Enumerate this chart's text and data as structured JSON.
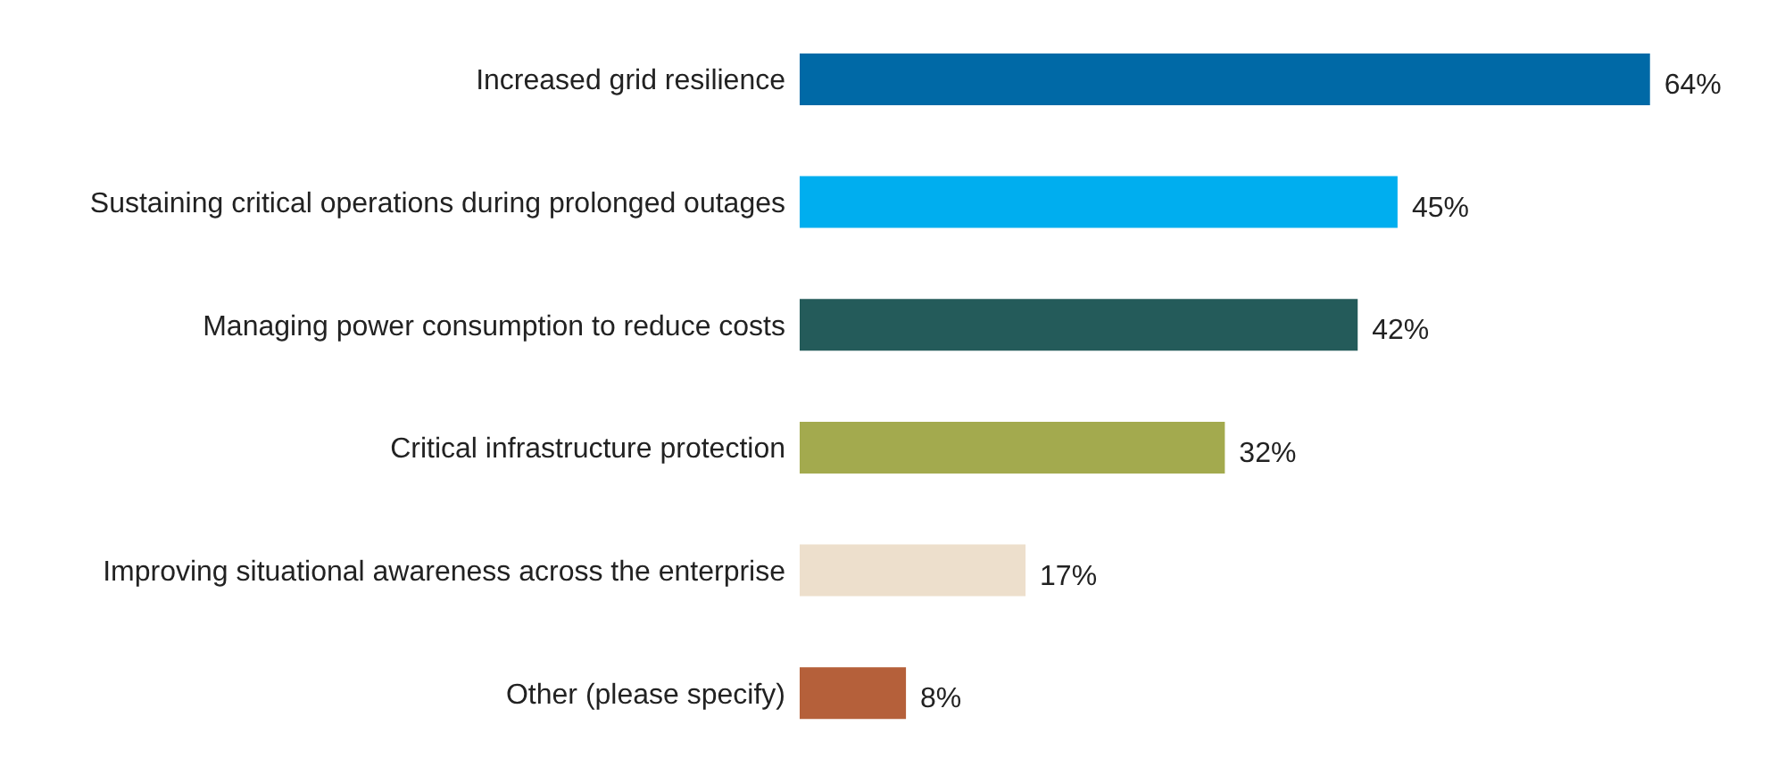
{
  "chart_data": {
    "type": "bar",
    "orientation": "horizontal",
    "categories": [
      "Increased grid resilience",
      "Sustaining critical operations during prolonged outages",
      "Managing power consumption to reduce costs",
      "Critical infrastructure protection",
      "Improving situational awareness across the enterprise",
      "Other (please specify)"
    ],
    "values": [
      64,
      45,
      42,
      32,
      17,
      8
    ],
    "colors": [
      "#0069a6",
      "#00aeef",
      "#245b5a",
      "#a3aa4e",
      "#eddfcc",
      "#b5603a"
    ],
    "value_labels": [
      "64%",
      "45%",
      "42%",
      "32%",
      "17%",
      "8%"
    ]
  }
}
